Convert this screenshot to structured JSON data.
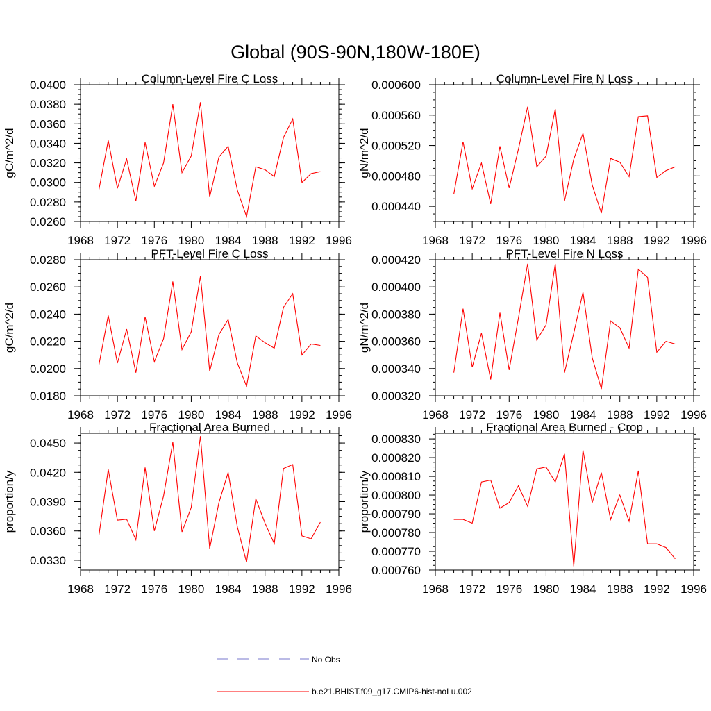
{
  "page_title": "Global (90S-90N,180W-180E)",
  "legend": [
    {
      "label": "No Obs",
      "color": "#7777cc",
      "style": "dashed"
    },
    {
      "label": "b.e21.BHIST.f09_g17.CMIP6-hist-noLu.002",
      "color": "#ff0000",
      "style": "solid"
    }
  ],
  "chart_data": [
    {
      "type": "line",
      "title": "Column-Level Fire C Loss",
      "ylabel": "gC/m^2/d",
      "xlim": [
        1968,
        1996
      ],
      "xticks": [
        "1968",
        "1972",
        "1976",
        "1980",
        "1984",
        "1988",
        "1992",
        "1996"
      ],
      "ylim": [
        0.026,
        0.04
      ],
      "yticks": [
        "0.0260",
        "0.0280",
        "0.0300",
        "0.0320",
        "0.0340",
        "0.0360",
        "0.0380",
        "0.0400"
      ],
      "x": [
        1970,
        1971,
        1972,
        1973,
        1974,
        1975,
        1976,
        1977,
        1978,
        1979,
        1980,
        1981,
        1982,
        1983,
        1984,
        1985,
        1986,
        1987,
        1988,
        1989,
        1990,
        1991,
        1992,
        1993,
        1994
      ],
      "series": [
        {
          "values": [
            0.0293,
            0.0343,
            0.0294,
            0.0324,
            0.0281,
            0.0341,
            0.0296,
            0.032,
            0.038,
            0.031,
            0.0327,
            0.0382,
            0.0285,
            0.0326,
            0.0337,
            0.0292,
            0.0265,
            0.0316,
            0.0313,
            0.0306,
            0.0346,
            0.0365,
            0.03,
            0.0309,
            0.0311
          ],
          "color": "#ff0000"
        }
      ]
    },
    {
      "type": "line",
      "title": "Column-Level Fire N Loss",
      "ylabel": "gN/m^2/d",
      "xlim": [
        1968,
        1996
      ],
      "xticks": [
        "1968",
        "1972",
        "1976",
        "1980",
        "1984",
        "1988",
        "1992",
        "1996"
      ],
      "ylim": [
        0.00042,
        0.0006
      ],
      "yticks": [
        "0.000440",
        "0.000480",
        "0.000520",
        "0.000560",
        "0.000600"
      ],
      "x": [
        1970,
        1971,
        1972,
        1973,
        1974,
        1975,
        1976,
        1977,
        1978,
        1979,
        1980,
        1981,
        1982,
        1983,
        1984,
        1985,
        1986,
        1987,
        1988,
        1989,
        1990,
        1991,
        1992,
        1993,
        1994
      ],
      "series": [
        {
          "values": [
            0.000456,
            0.000525,
            0.000463,
            0.000497,
            0.000443,
            0.000519,
            0.000464,
            0.000515,
            0.000571,
            0.000492,
            0.000506,
            0.000568,
            0.000447,
            0.000502,
            0.000536,
            0.000468,
            0.000431,
            0.000503,
            0.000498,
            0.000479,
            0.000558,
            0.000559,
            0.000478,
            0.000487,
            0.000492
          ],
          "color": "#ff0000"
        }
      ]
    },
    {
      "type": "line",
      "title": "PFT-Level Fire C Loss",
      "ylabel": "gC/m^2/d",
      "xlim": [
        1968,
        1996
      ],
      "xticks": [
        "1968",
        "1972",
        "1976",
        "1980",
        "1984",
        "1988",
        "1992",
        "1996"
      ],
      "ylim": [
        0.018,
        0.028
      ],
      "yticks": [
        "0.0180",
        "0.0200",
        "0.0220",
        "0.0240",
        "0.0260",
        "0.0280"
      ],
      "x": [
        1970,
        1971,
        1972,
        1973,
        1974,
        1975,
        1976,
        1977,
        1978,
        1979,
        1980,
        1981,
        1982,
        1983,
        1984,
        1985,
        1986,
        1987,
        1988,
        1989,
        1990,
        1991,
        1992,
        1993,
        1994
      ],
      "series": [
        {
          "values": [
            0.0203,
            0.0239,
            0.0204,
            0.0229,
            0.0197,
            0.0238,
            0.0205,
            0.0222,
            0.0264,
            0.0214,
            0.0227,
            0.0268,
            0.0198,
            0.0225,
            0.0236,
            0.0204,
            0.0187,
            0.0224,
            0.0219,
            0.0215,
            0.0245,
            0.0255,
            0.021,
            0.0218,
            0.0217
          ],
          "color": "#ff0000"
        }
      ]
    },
    {
      "type": "line",
      "title": "PFT-Level Fire N Loss",
      "ylabel": "gN/m^2/d",
      "xlim": [
        1968,
        1996
      ],
      "xticks": [
        "1968",
        "1972",
        "1976",
        "1980",
        "1984",
        "1988",
        "1992",
        "1996"
      ],
      "ylim": [
        0.00032,
        0.00042
      ],
      "yticks": [
        "0.000320",
        "0.000340",
        "0.000360",
        "0.000380",
        "0.000400",
        "0.000420"
      ],
      "x": [
        1970,
        1971,
        1972,
        1973,
        1974,
        1975,
        1976,
        1977,
        1978,
        1979,
        1980,
        1981,
        1982,
        1983,
        1984,
        1985,
        1986,
        1987,
        1988,
        1989,
        1990,
        1991,
        1992,
        1993,
        1994
      ],
      "series": [
        {
          "values": [
            0.000337,
            0.000384,
            0.000341,
            0.000366,
            0.000332,
            0.000381,
            0.000339,
            0.000377,
            0.000417,
            0.000361,
            0.000372,
            0.000417,
            0.000337,
            0.000366,
            0.000396,
            0.000348,
            0.000325,
            0.000375,
            0.00037,
            0.000355,
            0.000413,
            0.000407,
            0.000352,
            0.00036,
            0.000358
          ],
          "color": "#ff0000"
        }
      ]
    },
    {
      "type": "line",
      "title": "Fractional Area Burned",
      "ylabel": "proportion/y",
      "xlim": [
        1968,
        1996
      ],
      "xticks": [
        "1968",
        "1972",
        "1976",
        "1980",
        "1984",
        "1988",
        "1992",
        "1996"
      ],
      "ylim": [
        0.032,
        0.046
      ],
      "yticks": [
        "0.0330",
        "0.0360",
        "0.0390",
        "0.0420",
        "0.0450"
      ],
      "x": [
        1970,
        1971,
        1972,
        1973,
        1974,
        1975,
        1976,
        1977,
        1978,
        1979,
        1980,
        1981,
        1982,
        1983,
        1984,
        1985,
        1986,
        1987,
        1988,
        1989,
        1990,
        1991,
        1992,
        1993,
        1994
      ],
      "series": [
        {
          "values": [
            0.0356,
            0.0423,
            0.0371,
            0.0372,
            0.0351,
            0.0425,
            0.036,
            0.0396,
            0.0451,
            0.0359,
            0.0384,
            0.0457,
            0.0342,
            0.0389,
            0.042,
            0.0364,
            0.0328,
            0.0393,
            0.0368,
            0.0347,
            0.0424,
            0.0428,
            0.0355,
            0.0352,
            0.0369
          ],
          "color": "#ff0000"
        }
      ]
    },
    {
      "type": "line",
      "title": "Fractional Area Burned - Crop",
      "ylabel": "proportion/y",
      "xlim": [
        1968,
        1996
      ],
      "xticks": [
        "1968",
        "1972",
        "1976",
        "1980",
        "1984",
        "1988",
        "1992",
        "1996"
      ],
      "ylim": [
        0.00076,
        0.000833
      ],
      "yticks": [
        "0.000760",
        "0.000770",
        "0.000780",
        "0.000790",
        "0.000800",
        "0.000810",
        "0.000820",
        "0.000830"
      ],
      "x": [
        1970,
        1971,
        1972,
        1973,
        1974,
        1975,
        1976,
        1977,
        1978,
        1979,
        1980,
        1981,
        1982,
        1983,
        1984,
        1985,
        1986,
        1987,
        1988,
        1989,
        1990,
        1991,
        1992,
        1993,
        1994
      ],
      "series": [
        {
          "values": [
            0.000787,
            0.000787,
            0.000785,
            0.000807,
            0.000808,
            0.000793,
            0.000796,
            0.000805,
            0.000794,
            0.000814,
            0.000815,
            0.000807,
            0.000822,
            0.000762,
            0.000824,
            0.000796,
            0.000812,
            0.000787,
            0.0008,
            0.000786,
            0.000813,
            0.000774,
            0.000774,
            0.000772,
            0.000766
          ],
          "color": "#ff0000"
        }
      ]
    }
  ]
}
